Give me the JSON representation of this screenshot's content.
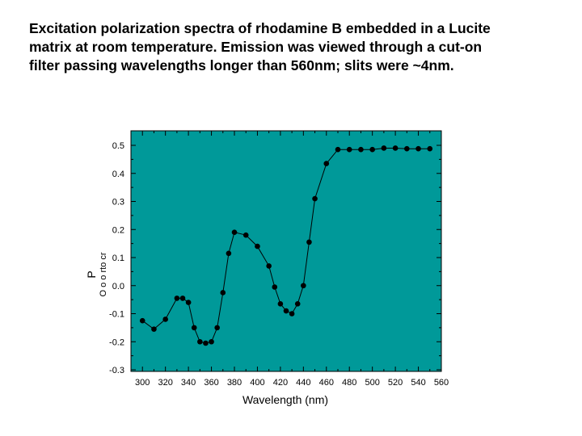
{
  "caption": {
    "line1": "Excitation polarization spectra of rhodamine B embedded in a Lucite",
    "line2": "matrix at room temperature.  Emission was viewed through a cut-on",
    "line3": "filter passing wavelengths longer than 560nm; slits were ~4nm."
  },
  "colors": {
    "plot_background": "#009999",
    "series": "#000000"
  },
  "chart_data": {
    "type": "line",
    "title": "",
    "xlabel": "Wavelength (nm)",
    "ylabel": "P",
    "ylabel_extra": "O o o rto cr",
    "xlim": [
      290,
      560
    ],
    "ylim": [
      -0.3,
      0.5
    ],
    "xticks": [
      300,
      320,
      340,
      360,
      380,
      400,
      420,
      440,
      460,
      480,
      500,
      520,
      540,
      560
    ],
    "yticks": [
      -0.3,
      -0.2,
      -0.1,
      0.0,
      0.1,
      0.2,
      0.3,
      0.4,
      0.5
    ],
    "ytick_labels": [
      "-0.3",
      "-0.2",
      "-0.1",
      "0.0",
      "0.1",
      "0.2",
      "0.3",
      "0.4",
      "0.5"
    ],
    "grid": false,
    "series": [
      {
        "x": [
          300,
          310,
          320,
          330,
          335,
          340,
          345,
          350,
          355,
          360,
          365,
          370,
          375,
          380,
          390,
          400,
          410,
          415,
          420,
          425,
          430,
          435,
          440,
          445,
          450,
          460,
          470,
          480,
          490,
          500,
          510,
          520,
          530,
          540,
          550
        ],
        "y": [
          -0.125,
          -0.155,
          -0.12,
          -0.045,
          -0.045,
          -0.06,
          -0.15,
          -0.2,
          -0.205,
          -0.2,
          -0.15,
          -0.025,
          0.115,
          0.19,
          0.18,
          0.14,
          0.07,
          -0.005,
          -0.065,
          -0.09,
          -0.1,
          -0.065,
          0.0,
          0.155,
          0.31,
          0.435,
          0.485,
          0.485,
          0.485,
          0.485,
          0.49,
          0.49,
          0.488,
          0.488,
          0.488
        ]
      }
    ]
  }
}
